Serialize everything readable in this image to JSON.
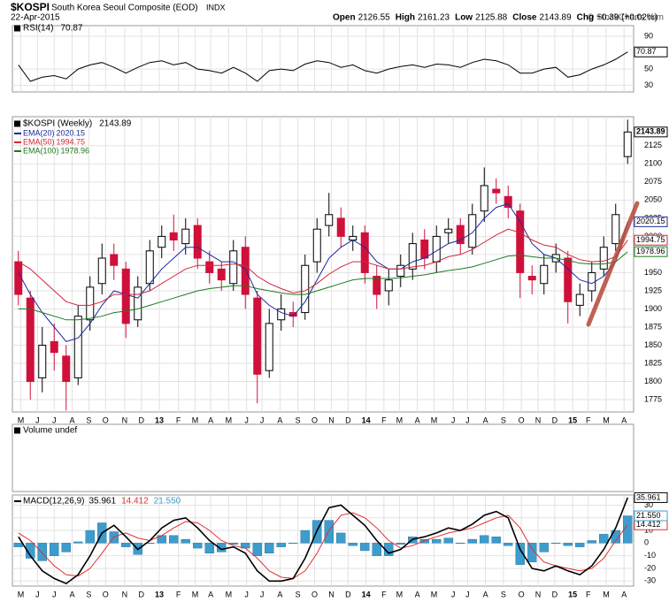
{
  "header": {
    "symbol": "$KOSPI",
    "name": "South Korea Seoul Composite (EOD)",
    "exchange": "INDX",
    "date": "22-Apr-2015",
    "quote": [
      {
        "label": "Open",
        "value": "2126.55"
      },
      {
        "label": "High",
        "value": "2161.23"
      },
      {
        "label": "Low",
        "value": "2125.88"
      },
      {
        "label": "Close",
        "value": "2143.89"
      },
      {
        "label": "Chg",
        "value": "+0.39 (+0.02%)"
      }
    ],
    "credit": "© StockCharts.com"
  },
  "chart_data": [
    {
      "type": "line",
      "title": "RSI(14)",
      "series": [
        {
          "color": "#000000",
          "values": [
            55,
            35,
            40,
            42,
            38,
            50,
            55,
            58,
            52,
            45,
            52,
            58,
            60,
            55,
            58,
            50,
            48,
            45,
            52,
            45,
            35,
            48,
            50,
            48,
            56,
            60,
            58,
            52,
            55,
            48,
            45,
            50,
            53,
            55,
            52,
            56,
            55,
            52,
            58,
            62,
            60,
            55,
            45,
            45,
            50,
            52,
            40,
            43,
            50,
            55,
            62,
            70.87
          ]
        }
      ],
      "ylim": [
        22,
        103
      ],
      "yticks": [
        30,
        50,
        90
      ],
      "grid": true
    },
    {
      "type": "candlestick",
      "title": "$KOSPI (Weekly)",
      "up_color": "#000000",
      "down_color": "#d0103a",
      "open": [
        1965,
        1915,
        1805,
        1855,
        1835,
        1805,
        1885,
        1935,
        1975,
        1955,
        1885,
        1935,
        1985,
        2005,
        1990,
        2015,
        1965,
        1955,
        1935,
        1985,
        1915,
        1815,
        1885,
        1895,
        1895,
        1965,
        2015,
        2025,
        1995,
        2005,
        1945,
        1925,
        1945,
        1955,
        1995,
        1965,
        2005,
        2015,
        1985,
        2035,
        2065,
        2055,
        2035,
        1945,
        1935,
        1965,
        1970,
        1905,
        1925,
        1955,
        1990,
        2110
      ],
      "high": [
        1980,
        1925,
        1875,
        1880,
        1850,
        1905,
        1945,
        1990,
        1990,
        1965,
        1945,
        1995,
        2015,
        2030,
        2025,
        2025,
        1980,
        1965,
        1995,
        2000,
        1925,
        1900,
        1920,
        1910,
        1975,
        2025,
        2060,
        2040,
        2015,
        2015,
        1960,
        1955,
        1975,
        2005,
        2010,
        2015,
        2025,
        2025,
        2045,
        2095,
        2080,
        2070,
        2045,
        1960,
        1975,
        1990,
        1980,
        1935,
        1965,
        2000,
        2045,
        2161
      ],
      "low": [
        1905,
        1775,
        1785,
        1815,
        1760,
        1795,
        1870,
        1920,
        1940,
        1860,
        1875,
        1925,
        1970,
        1980,
        1975,
        1955,
        1935,
        1925,
        1925,
        1900,
        1770,
        1805,
        1870,
        1875,
        1885,
        1950,
        2000,
        1985,
        1980,
        1935,
        1900,
        1905,
        1930,
        1940,
        1955,
        1950,
        1990,
        1975,
        1975,
        2020,
        2045,
        2025,
        1915,
        1920,
        1920,
        1950,
        1880,
        1890,
        1910,
        1945,
        1980,
        2100
      ],
      "close": [
        1920,
        1800,
        1850,
        1840,
        1800,
        1890,
        1930,
        1970,
        1960,
        1880,
        1930,
        1980,
        2000,
        1995,
        2010,
        1970,
        1950,
        1940,
        1980,
        1920,
        1810,
        1880,
        1900,
        1890,
        1960,
        2010,
        2030,
        2000,
        2000,
        1950,
        1920,
        1940,
        1960,
        1990,
        1970,
        2000,
        2010,
        1990,
        2030,
        2070,
        2060,
        2040,
        1950,
        1940,
        1960,
        1975,
        1910,
        1920,
        1950,
        1985,
        2030,
        2143.89
      ],
      "series": [
        {
          "name": "EMA(20)",
          "color": "#1c2a9c",
          "values": [
            1950,
            1920,
            1895,
            1875,
            1855,
            1860,
            1880,
            1905,
            1925,
            1920,
            1915,
            1935,
            1955,
            1970,
            1985,
            1985,
            1975,
            1965,
            1965,
            1955,
            1920,
            1905,
            1895,
            1890,
            1910,
            1940,
            1970,
            1985,
            1995,
            1985,
            1965,
            1955,
            1955,
            1965,
            1970,
            1980,
            1990,
            1995,
            2005,
            2025,
            2040,
            2045,
            2020,
            1990,
            1975,
            1970,
            1955,
            1940,
            1935,
            1945,
            1965,
            2020.15
          ]
        },
        {
          "name": "EMA(50)",
          "color": "#d0283a",
          "values": [
            1965,
            1955,
            1940,
            1925,
            1910,
            1905,
            1905,
            1910,
            1920,
            1920,
            1920,
            1925,
            1935,
            1945,
            1955,
            1960,
            1960,
            1960,
            1962,
            1960,
            1945,
            1935,
            1928,
            1922,
            1925,
            1935,
            1948,
            1958,
            1965,
            1965,
            1960,
            1955,
            1955,
            1958,
            1960,
            1965,
            1972,
            1975,
            1982,
            1992,
            2002,
            2010,
            2005,
            1995,
            1988,
            1985,
            1975,
            1968,
            1965,
            1966,
            1972,
            1994.75
          ]
        },
        {
          "name": "EMA(100)",
          "color": "#1e7a1e",
          "values": [
            1900,
            1900,
            1895,
            1890,
            1885,
            1885,
            1887,
            1890,
            1895,
            1897,
            1900,
            1905,
            1910,
            1915,
            1920,
            1925,
            1928,
            1930,
            1932,
            1932,
            1928,
            1925,
            1922,
            1920,
            1920,
            1925,
            1930,
            1935,
            1940,
            1942,
            1942,
            1942,
            1943,
            1945,
            1947,
            1950,
            1953,
            1955,
            1958,
            1963,
            1968,
            1973,
            1974,
            1972,
            1970,
            1970,
            1967,
            1963,
            1962,
            1962,
            1965,
            1978.96
          ]
        }
      ],
      "ylim": [
        1758,
        2165
      ],
      "yticks": [
        1775,
        1800,
        1825,
        1850,
        1875,
        1900,
        1925,
        1950,
        1975,
        2000,
        2025,
        2050,
        2075,
        2100,
        2125
      ],
      "xlim": [
        0,
        52
      ],
      "xticks": [
        {
          "value": 0.7,
          "label": "M"
        },
        {
          "value": 2.1,
          "label": "J"
        },
        {
          "value": 3.5,
          "label": "J"
        },
        {
          "value": 5.0,
          "label": "A"
        },
        {
          "value": 6.4,
          "label": "S"
        },
        {
          "value": 7.8,
          "label": "O"
        },
        {
          "value": 9.4,
          "label": "N"
        },
        {
          "value": 10.8,
          "label": "D"
        },
        {
          "value": 12.3,
          "label": "13"
        },
        {
          "value": 13.9,
          "label": "F"
        },
        {
          "value": 15.3,
          "label": "M"
        },
        {
          "value": 16.6,
          "label": "A"
        },
        {
          "value": 18.1,
          "label": "M"
        },
        {
          "value": 19.6,
          "label": "J"
        },
        {
          "value": 20.9,
          "label": "J"
        },
        {
          "value": 22.4,
          "label": "A"
        },
        {
          "value": 23.9,
          "label": "S"
        },
        {
          "value": 25.3,
          "label": "O"
        },
        {
          "value": 26.7,
          "label": "N"
        },
        {
          "value": 28.1,
          "label": "D"
        },
        {
          "value": 29.6,
          "label": "14"
        },
        {
          "value": 31.1,
          "label": "F"
        },
        {
          "value": 32.4,
          "label": "M"
        },
        {
          "value": 33.9,
          "label": "A"
        },
        {
          "value": 35.3,
          "label": "M"
        },
        {
          "value": 36.9,
          "label": "J"
        },
        {
          "value": 38.1,
          "label": "J"
        },
        {
          "value": 39.6,
          "label": "A"
        },
        {
          "value": 41.1,
          "label": "S"
        },
        {
          "value": 42.6,
          "label": "O"
        },
        {
          "value": 44.0,
          "label": "N"
        },
        {
          "value": 45.4,
          "label": "D"
        },
        {
          "value": 46.9,
          "label": "15"
        },
        {
          "value": 48.2,
          "label": "F"
        },
        {
          "value": 49.7,
          "label": "M"
        },
        {
          "value": 51.2,
          "label": "A"
        }
      ],
      "grid": true
    },
    {
      "type": "volume",
      "title": "Volume undef"
    },
    {
      "type": "macd",
      "title": "MACD(12,26,9)",
      "series": [
        {
          "color": "#000000",
          "values": [
            5,
            -10,
            -22,
            -28,
            -32,
            -25,
            -10,
            8,
            14,
            5,
            -5,
            2,
            12,
            18,
            20,
            12,
            2,
            -5,
            -3,
            -8,
            -22,
            -30,
            -30,
            -28,
            -12,
            10,
            28,
            30,
            22,
            14,
            2,
            -8,
            -5,
            3,
            5,
            8,
            12,
            10,
            15,
            22,
            25,
            20,
            -5,
            -20,
            -22,
            -18,
            -22,
            -25,
            -18,
            -5,
            12,
            35.961
          ]
        },
        {
          "color": "#e03030",
          "values": [
            8,
            2,
            -8,
            -18,
            -25,
            -26,
            -20,
            -8,
            5,
            8,
            4,
            2,
            6,
            12,
            17,
            16,
            10,
            2,
            -2,
            -4,
            -12,
            -22,
            -27,
            -28,
            -22,
            -8,
            10,
            22,
            24,
            20,
            12,
            2,
            -4,
            -2,
            2,
            5,
            8,
            10,
            12,
            16,
            20,
            22,
            12,
            -5,
            -15,
            -18,
            -20,
            -22,
            -20,
            -12,
            2,
            14.412
          ]
        },
        {
          "color": "#3d9ccc",
          "values": [
            -3,
            -12,
            -14,
            -10,
            -7,
            1,
            10,
            16,
            9,
            -3,
            -9,
            0,
            6,
            6,
            3,
            -4,
            -8,
            -7,
            -1,
            -4,
            -10,
            -8,
            -3,
            0,
            10,
            18,
            18,
            8,
            -2,
            -6,
            -10,
            -10,
            -1,
            5,
            3,
            3,
            4,
            0,
            3,
            6,
            5,
            -2,
            -17,
            -15,
            -7,
            0,
            -2,
            -3,
            2,
            7,
            10,
            21.55
          ],
          "last_label": "21.550"
        }
      ],
      "ylim": [
        -34,
        38
      ],
      "yticks": [
        -30,
        -20,
        -10,
        0,
        10,
        20,
        30
      ],
      "grid": true
    }
  ]
}
